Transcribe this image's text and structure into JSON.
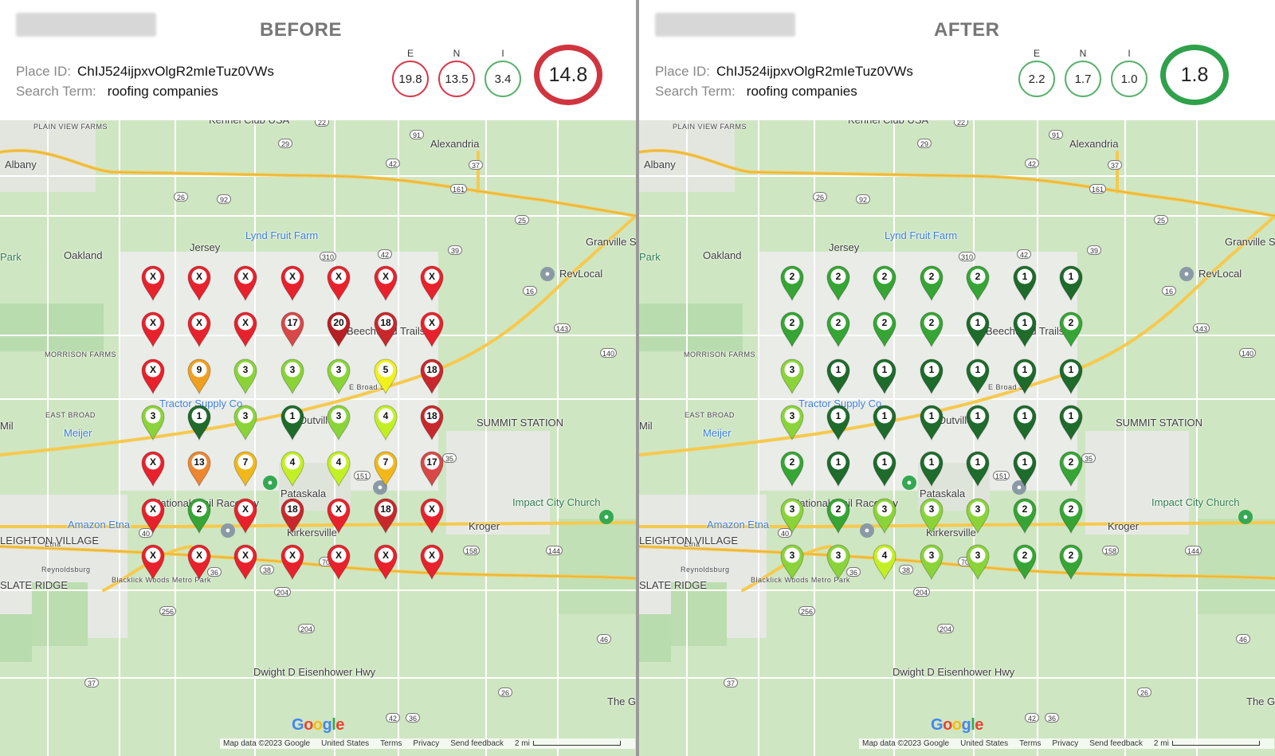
{
  "before": {
    "title": "BEFORE",
    "place_id_label": "Place ID:",
    "place_id": "ChIJ524ijpxvOlgR2mIeTuz0VWs",
    "search_term_label": "Search Term:",
    "search_term": "roofing companies",
    "metrics": [
      {
        "label": "E",
        "value": "19.8",
        "color": "#d9394a"
      },
      {
        "label": "N",
        "value": "13.5",
        "color": "#d9394a"
      },
      {
        "label": "I",
        "value": "3.4",
        "color": "#5ab06c"
      }
    ],
    "overall": {
      "value": "14.8",
      "color": "#d0353f"
    },
    "grid": [
      [
        "X",
        "X",
        "X",
        "X",
        "X",
        "X",
        "X"
      ],
      [
        "X",
        "X",
        "X",
        "17",
        "20",
        "18",
        "X"
      ],
      [
        "X",
        "9",
        "3",
        "3",
        "3",
        "5",
        "18"
      ],
      [
        "3",
        "1",
        "3",
        "1",
        "3",
        "4",
        "18"
      ],
      [
        "X",
        "13",
        "7",
        "4",
        "4",
        "7",
        "17"
      ],
      [
        "X",
        "2",
        "X",
        "18",
        "X",
        "18",
        "X"
      ],
      [
        "X",
        "X",
        "X",
        "X",
        "X",
        "X",
        "X"
      ]
    ]
  },
  "after": {
    "title": "AFTER",
    "place_id_label": "Place ID:",
    "place_id": "ChIJ524ijpxvOlgR2mIeTuz0VWs",
    "search_term_label": "Search Term:",
    "search_term": "roofing companies",
    "metrics": [
      {
        "label": "E",
        "value": "2.2",
        "color": "#5ab06c"
      },
      {
        "label": "N",
        "value": "1.7",
        "color": "#5ab06c"
      },
      {
        "label": "I",
        "value": "1.0",
        "color": "#5ab06c"
      }
    ],
    "overall": {
      "value": "1.8",
      "color": "#2fa14a"
    },
    "grid": [
      [
        "2",
        "2",
        "2",
        "2",
        "2",
        "1",
        "1"
      ],
      [
        "2",
        "2",
        "2",
        "2",
        "1",
        "1",
        "2"
      ],
      [
        "3",
        "1",
        "1",
        "1",
        "1",
        "1",
        "1"
      ],
      [
        "3",
        "1",
        "1",
        "1",
        "1",
        "1",
        "1"
      ],
      [
        "2",
        "1",
        "1",
        "1",
        "1",
        "1",
        "2"
      ],
      [
        "3",
        "2",
        "3",
        "3",
        "3",
        "2",
        "2"
      ],
      [
        "3",
        "3",
        "4",
        "3",
        "3",
        "2",
        "2"
      ]
    ]
  },
  "rank_colors": {
    "X": "#e8222c",
    "1": "#1f6b2c",
    "2": "#36a535",
    "3": "#8ad43a",
    "4": "#c3f024",
    "5": "#f0f21c",
    "7": "#f2b81b",
    "9": "#f0a020",
    "13": "#ee8630",
    "17": "#d84848",
    "18": "#c8282c",
    "20": "#b61f24"
  },
  "map": {
    "labels": [
      "Kennel Club USA",
      "PLAIN VIEW FARMS",
      "Albany",
      "Alexandria",
      "Jersey",
      "Oakland",
      "Lynd Fruit Farm",
      "Park",
      "Granville South",
      "RevLocal",
      "Beechwold Trails",
      "MORRISON FARMS",
      "Tractor Supply Co",
      "E Broad St",
      "EAST BROAD",
      "Meijer",
      "SUMMIT STATION",
      "Outville",
      "Pataskala",
      "Impact City Church",
      "National Trail Raceway",
      "Amazon Etna",
      "Kroger",
      "Kirkersville",
      "Etna",
      "LEIGHTON VILLAGE",
      "Reynoldsburg",
      "SLATE RIDGE",
      "Blacklick Woods Metro Park",
      "Dwight D Eisenhower Hwy",
      "The Grove Community Christian Church",
      "Mil",
      "Blacklick"
    ],
    "shields": [
      "22",
      "29",
      "91",
      "42",
      "37",
      "161",
      "92",
      "26",
      "25",
      "39",
      "310",
      "42",
      "16",
      "143",
      "140",
      "151",
      "35",
      "40",
      "158",
      "144",
      "70",
      "36",
      "38",
      "204",
      "256",
      "37",
      "46",
      "36",
      "42",
      "204",
      "26"
    ],
    "google_text": "Google",
    "footer": [
      "Map data ©2023 Google",
      "United States",
      "Terms",
      "Privacy",
      "Send feedback",
      "2 mi"
    ]
  }
}
